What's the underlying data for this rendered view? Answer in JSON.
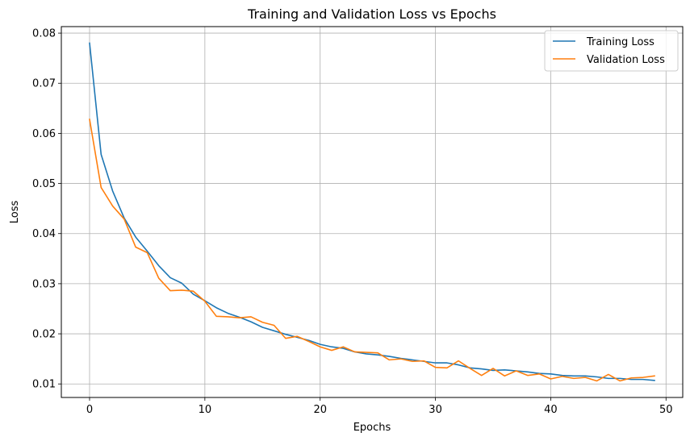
{
  "chart_data": {
    "type": "line",
    "title": "Training and Validation Loss vs Epochs",
    "xlabel": "Epochs",
    "ylabel": "Loss",
    "xlim": [
      -2.45,
      51.45
    ],
    "ylim": [
      0.0073,
      0.0813
    ],
    "x_ticks": [
      0,
      10,
      20,
      30,
      40,
      50
    ],
    "x_tick_labels": [
      "0",
      "10",
      "20",
      "30",
      "40",
      "50"
    ],
    "y_ticks": [
      0.01,
      0.02,
      0.03,
      0.04,
      0.05,
      0.06,
      0.07,
      0.08
    ],
    "y_tick_labels": [
      "0.01",
      "0.02",
      "0.03",
      "0.04",
      "0.05",
      "0.06",
      "0.07",
      "0.08"
    ],
    "grid": true,
    "legend_position": "upper right",
    "x": [
      0,
      1,
      2,
      3,
      4,
      5,
      6,
      7,
      8,
      9,
      10,
      11,
      12,
      13,
      14,
      15,
      16,
      17,
      18,
      19,
      20,
      21,
      22,
      23,
      24,
      25,
      26,
      27,
      28,
      29,
      30,
      31,
      32,
      33,
      34,
      35,
      36,
      37,
      38,
      39,
      40,
      41,
      42,
      43,
      44,
      45,
      46,
      47,
      48,
      49
    ],
    "series": [
      {
        "name": "Training Loss",
        "color": "#1f77b4",
        "values": [
          0.078,
          0.0558,
          0.0485,
          0.0431,
          0.0393,
          0.0365,
          0.0336,
          0.0312,
          0.0301,
          0.0279,
          0.0266,
          0.0252,
          0.0241,
          0.0233,
          0.0224,
          0.0213,
          0.0206,
          0.0199,
          0.0193,
          0.0187,
          0.0179,
          0.0174,
          0.0171,
          0.0164,
          0.016,
          0.0158,
          0.0155,
          0.0151,
          0.0148,
          0.0145,
          0.0142,
          0.0142,
          0.0138,
          0.0132,
          0.013,
          0.0127,
          0.0128,
          0.0126,
          0.0124,
          0.0121,
          0.012,
          0.0117,
          0.0116,
          0.0116,
          0.0114,
          0.0111,
          0.0111,
          0.0109,
          0.0109,
          0.0107
        ]
      },
      {
        "name": "Validation Loss",
        "color": "#ff7f0e",
        "values": [
          0.0628,
          0.0492,
          0.0455,
          0.0429,
          0.0373,
          0.0362,
          0.0311,
          0.0286,
          0.0287,
          0.0285,
          0.0265,
          0.0235,
          0.0234,
          0.0232,
          0.0234,
          0.0223,
          0.0217,
          0.0191,
          0.0195,
          0.0185,
          0.0174,
          0.0167,
          0.0174,
          0.0164,
          0.0163,
          0.0162,
          0.0148,
          0.015,
          0.0145,
          0.0146,
          0.0133,
          0.0132,
          0.0146,
          0.0131,
          0.0117,
          0.0131,
          0.0116,
          0.0126,
          0.0117,
          0.012,
          0.011,
          0.0115,
          0.0111,
          0.0113,
          0.0106,
          0.0119,
          0.0106,
          0.0112,
          0.0113,
          0.0116
        ]
      }
    ]
  }
}
